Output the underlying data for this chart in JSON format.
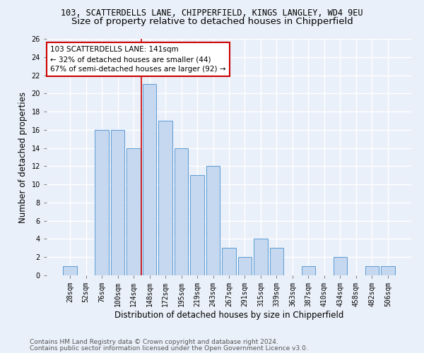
{
  "title1": "103, SCATTERDELLS LANE, CHIPPERFIELD, KINGS LANGLEY, WD4 9EU",
  "title2": "Size of property relative to detached houses in Chipperfield",
  "xlabel": "Distribution of detached houses by size in Chipperfield",
  "ylabel": "Number of detached properties",
  "bar_color": "#c5d8f0",
  "bar_edge_color": "#5b9bd5",
  "categories": [
    "28sqm",
    "52sqm",
    "76sqm",
    "100sqm",
    "124sqm",
    "148sqm",
    "172sqm",
    "195sqm",
    "219sqm",
    "243sqm",
    "267sqm",
    "291sqm",
    "315sqm",
    "339sqm",
    "363sqm",
    "387sqm",
    "410sqm",
    "434sqm",
    "458sqm",
    "482sqm",
    "506sqm"
  ],
  "values": [
    1,
    0,
    16,
    16,
    14,
    21,
    17,
    14,
    11,
    12,
    3,
    2,
    4,
    3,
    0,
    1,
    0,
    2,
    0,
    1,
    1
  ],
  "ylim": [
    0,
    26
  ],
  "yticks": [
    0,
    2,
    4,
    6,
    8,
    10,
    12,
    14,
    16,
    18,
    20,
    22,
    24,
    26
  ],
  "property_line_x": 4.5,
  "annotation_line1": "103 SCATTERDELLS LANE: 141sqm",
  "annotation_line2": "← 32% of detached houses are smaller (44)",
  "annotation_line3": "67% of semi-detached houses are larger (92) →",
  "annotation_box_color": "#ffffff",
  "annotation_box_edge": "#cc0000",
  "line_color": "#cc0000",
  "footer1": "Contains HM Land Registry data © Crown copyright and database right 2024.",
  "footer2": "Contains public sector information licensed under the Open Government Licence v3.0.",
  "bg_color": "#eaf0f9",
  "plot_bg_color": "#eaf0f9",
  "grid_color": "#ffffff",
  "title1_fontsize": 8.5,
  "title2_fontsize": 9.5,
  "tick_fontsize": 7,
  "label_fontsize": 8.5,
  "footer_fontsize": 6.5,
  "annotation_fontsize": 7.5
}
